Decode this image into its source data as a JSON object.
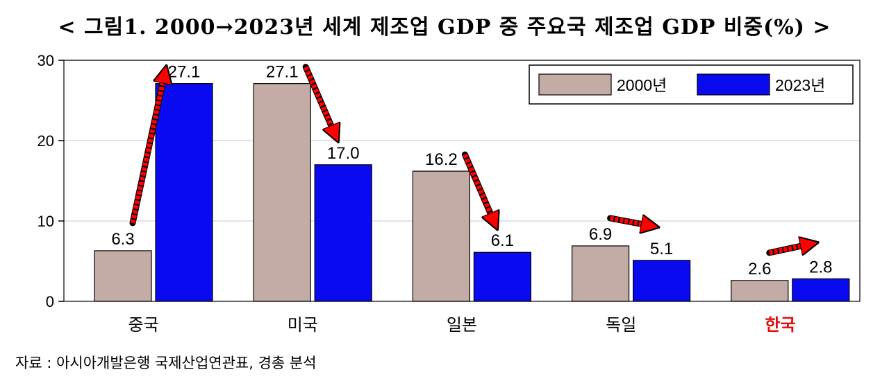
{
  "title": "< 그림1. 2000→2023년 세계 제조업 GDP 중 주요국 제조업 GDP 비중(%) >",
  "source": "자료 : 아시아개발은행 국제산업연관표, 경총 분석",
  "colors": {
    "series_2000": "#c4aca6",
    "series_2023": "#0a0af0",
    "arrow": "#ff0000",
    "highlight_category": "#e01010"
  },
  "chart_data": {
    "type": "bar",
    "title": "< 그림1. 2000→2023년 세계 제조업 GDP 중 주요국 제조업 GDP 비중(%) >",
    "xlabel": "",
    "ylabel": "",
    "categories": [
      "중국",
      "미국",
      "일본",
      "독일",
      "한국"
    ],
    "highlight_category": "한국",
    "series": [
      {
        "name": "2000년",
        "values": [
          6.3,
          27.1,
          16.2,
          6.9,
          2.6
        ],
        "labels": [
          "6.3",
          "27.1",
          "16.2",
          "6.9",
          "2.6"
        ]
      },
      {
        "name": "2023년",
        "values": [
          27.1,
          17.0,
          6.1,
          5.1,
          2.8
        ],
        "labels": [
          "27.1",
          "17.0",
          "6.1",
          "5.1",
          "2.8"
        ]
      }
    ],
    "ylim": [
      0,
      30
    ],
    "yticks": [
      0,
      10,
      20,
      30
    ],
    "grid": true,
    "legend_position": "top-right",
    "arrows": [
      "up",
      "down",
      "down",
      "flat",
      "flat"
    ]
  }
}
